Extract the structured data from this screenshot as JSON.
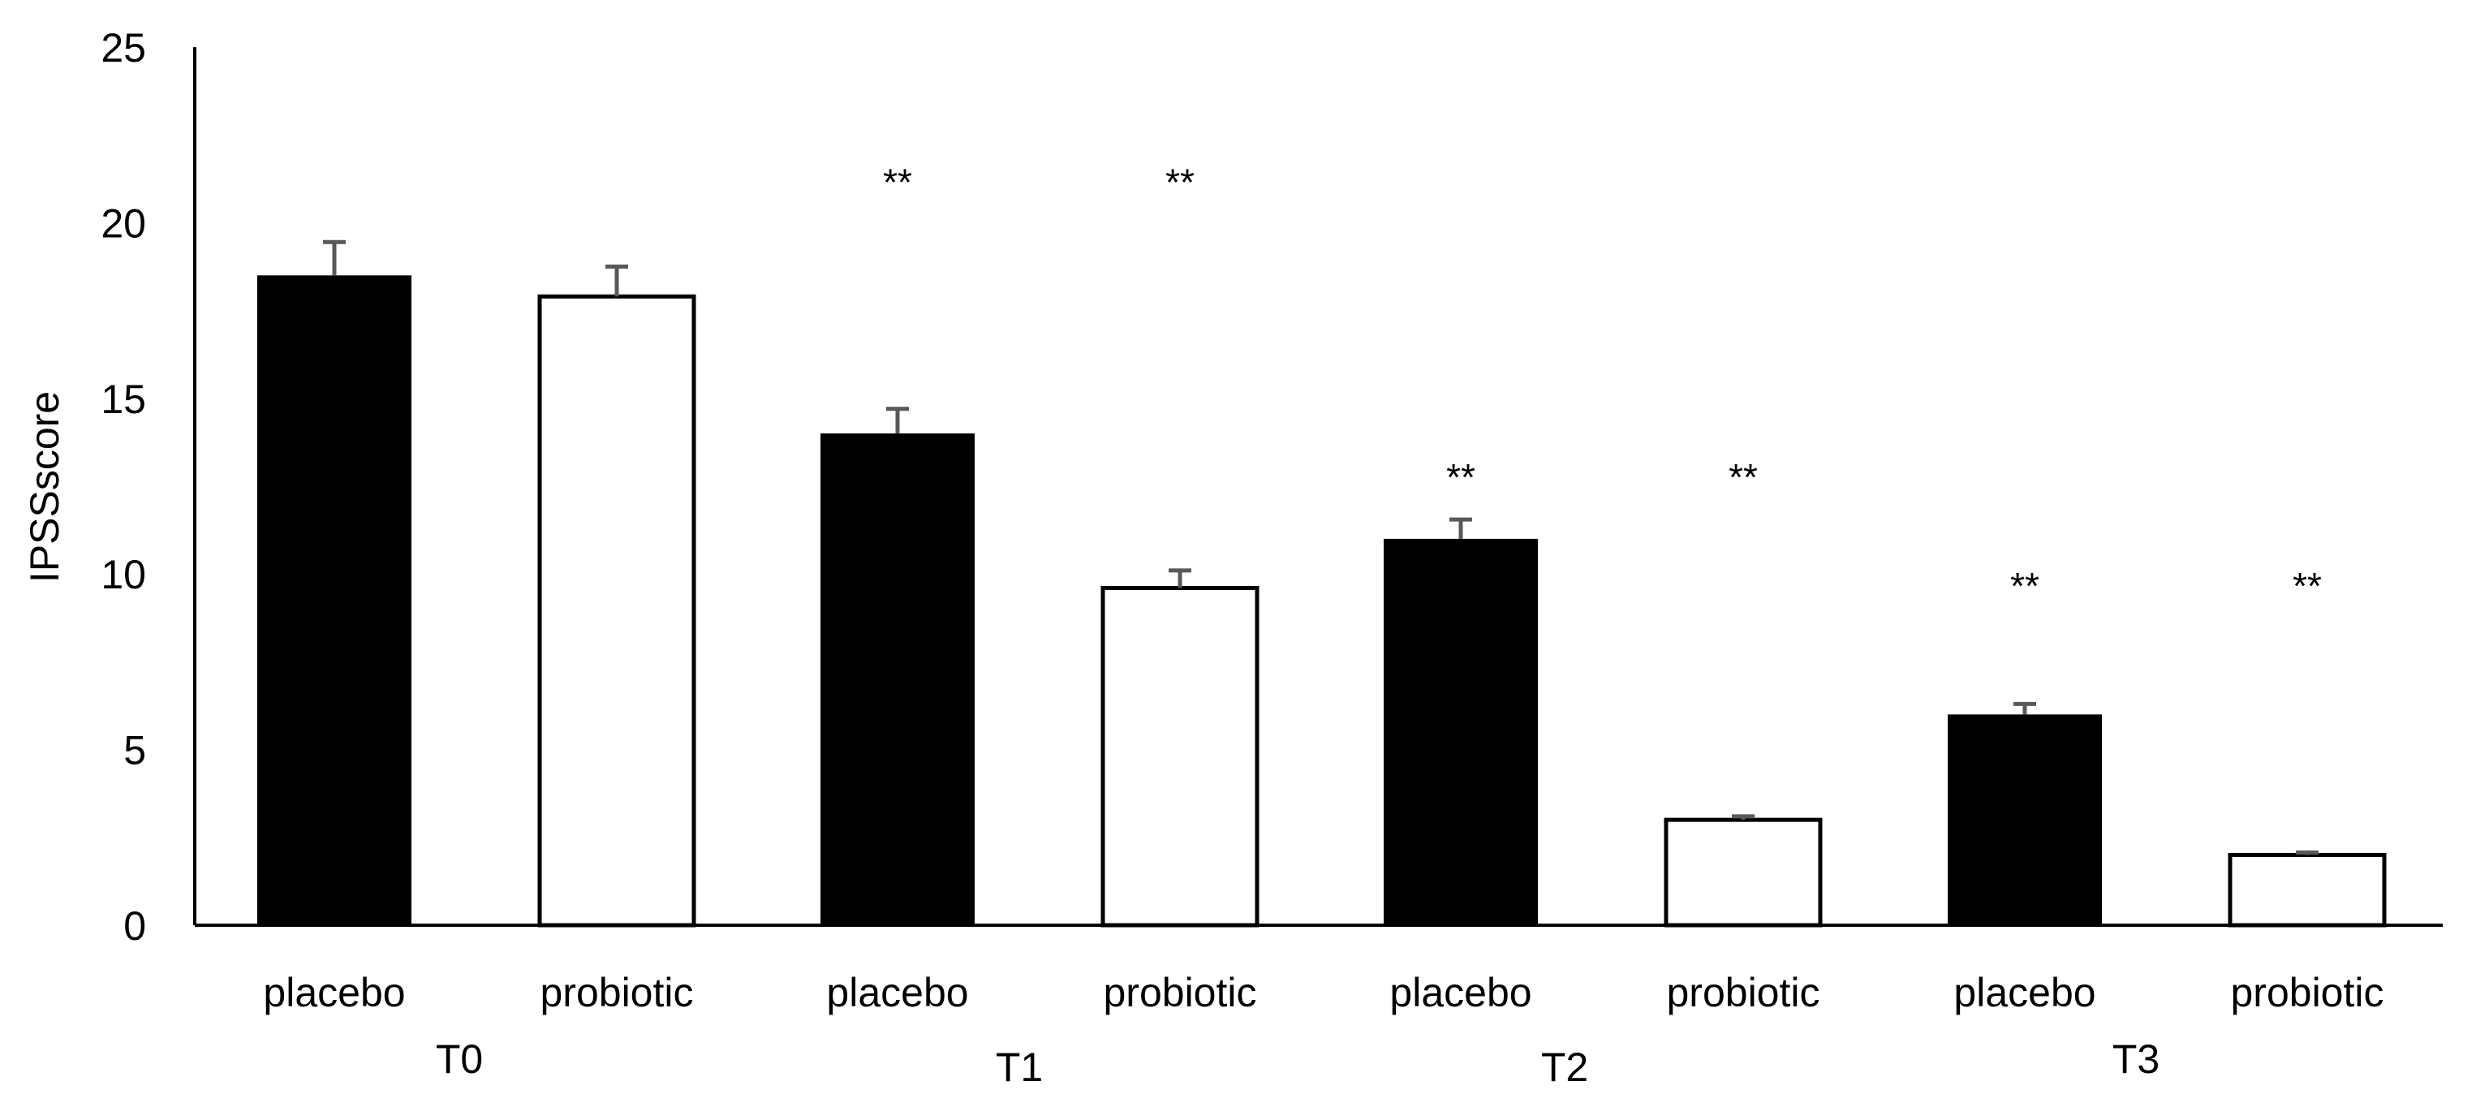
{
  "chart_data": {
    "type": "bar",
    "title": "",
    "xlabel": "",
    "ylabel": "IPSSscore",
    "ylim": [
      0,
      25
    ],
    "yticks": [
      0,
      5,
      10,
      15,
      20,
      25
    ],
    "grid": false,
    "colors": {
      "placebo": "#000000",
      "probiotic": "#ffffff",
      "error": "#595959"
    },
    "groups": [
      "T0",
      "T1",
      "T2",
      "T3"
    ],
    "bars": [
      {
        "group": "T0",
        "label": "placebo",
        "value": 18.5,
        "error": 0.95,
        "annotation": ""
      },
      {
        "group": "T0",
        "label": "probiotic",
        "value": 17.9,
        "error": 0.85,
        "annotation": ""
      },
      {
        "group": "T1",
        "label": "placebo",
        "value": 14.0,
        "error": 0.7,
        "annotation": "**"
      },
      {
        "group": "T1",
        "label": "probiotic",
        "value": 9.6,
        "error": 0.5,
        "annotation": "**"
      },
      {
        "group": "T2",
        "label": "placebo",
        "value": 11.0,
        "error": 0.55,
        "annotation": "**"
      },
      {
        "group": "T2",
        "label": "probiotic",
        "value": 3.0,
        "error": 0.1,
        "annotation": "**"
      },
      {
        "group": "T3",
        "label": "placebo",
        "value": 6.0,
        "error": 0.3,
        "annotation": "**"
      },
      {
        "group": "T3",
        "label": "probiotic",
        "value": 2.0,
        "error": 0.07,
        "annotation": "**"
      }
    ],
    "annotation_levels": {
      "T1": 21.2,
      "T2": 12.8,
      "T3": 9.7
    }
  }
}
